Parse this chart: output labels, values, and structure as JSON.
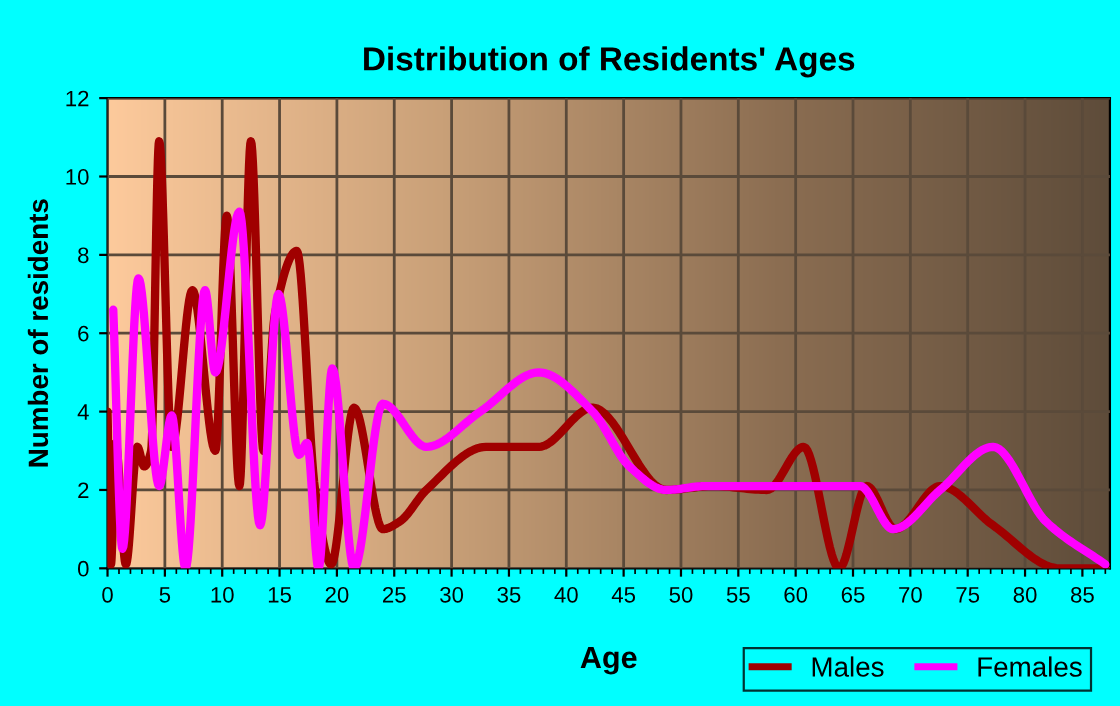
{
  "chart_data": {
    "type": "line",
    "title": "Distribution of Residents' Ages",
    "xlabel": "Age",
    "ylabel": "Number of residents",
    "xlim": [
      0,
      87.4
    ],
    "xticks": [
      0,
      5,
      10,
      15,
      20,
      25,
      30,
      35,
      40,
      45,
      50,
      55,
      60,
      65,
      70,
      75,
      80,
      85
    ],
    "ylim": [
      0,
      12
    ],
    "yticks": [
      0,
      2,
      4,
      6,
      8,
      10,
      12
    ],
    "grid": true,
    "legend": "bottom right",
    "line_style": "solid",
    "series": [
      {
        "name": "Males",
        "color": "#a00000",
        "x": [
          0,
          0.3,
          0.7,
          1.6,
          2.6,
          3.2,
          3.8,
          4.5,
          5.6,
          7.4,
          9.4,
          10.4,
          11.5,
          12.5,
          13.6,
          14.6,
          16.5,
          18.1,
          19.5,
          21.5,
          24,
          25.5,
          27.8,
          33,
          37.6,
          42.3,
          48.7,
          52.8,
          57.5,
          60.7,
          63.8,
          66.2,
          68.7,
          72.6,
          77.2,
          83,
          87
        ],
        "values": [
          4.0,
          0.1,
          3.2,
          0.1,
          3.1,
          2.6,
          3.0,
          10.9,
          3.1,
          7.1,
          3.0,
          9.0,
          2.1,
          10.9,
          3.0,
          6.5,
          8.1,
          2.0,
          0.1,
          4.1,
          1.0,
          1.2,
          2.0,
          3.1,
          3.1,
          4.1,
          2.0,
          2.1,
          2.0,
          3.1,
          0.0,
          2.1,
          1.0,
          2.1,
          1.1,
          0.0,
          0.0
        ]
      },
      {
        "name": "Females",
        "color": "#ff00ff",
        "x": [
          0.5,
          1.3,
          2.7,
          4.5,
          5.6,
          6.8,
          8.5,
          9.4,
          11.5,
          13.3,
          14.9,
          16.7,
          17.4,
          18.4,
          19.6,
          21.5,
          24,
          27.8,
          32.5,
          37.6,
          42.3,
          45.5,
          48.7,
          52.2,
          56.9,
          65.6,
          68.5,
          72.6,
          77.2,
          81.8,
          87
        ],
        "values": [
          6.6,
          0.5,
          7.4,
          2.1,
          3.9,
          0.0,
          7.1,
          5.0,
          9.1,
          1.1,
          7.0,
          2.9,
          3.2,
          0.0,
          5.1,
          0.0,
          4.2,
          3.1,
          4.0,
          5.0,
          4.0,
          2.6,
          2.0,
          2.1,
          2.1,
          2.1,
          1.0,
          2.0,
          3.1,
          1.2,
          0.1
        ]
      }
    ]
  }
}
